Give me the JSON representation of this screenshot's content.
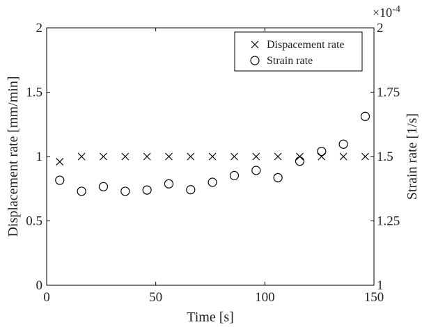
{
  "chart_data": {
    "type": "scatter",
    "title": "",
    "xlabel": "Time [s]",
    "ylabel_left": "Displacement rate [mm/min]",
    "ylabel_right": "Strain rate [1/s]",
    "xlim": [
      0,
      150
    ],
    "ylim_left": [
      0,
      2
    ],
    "ylim_right": [
      1,
      2
    ],
    "right_multiplier": "×10",
    "right_multiplier_exp": "-4",
    "x_ticks": [
      "0",
      "50",
      "100",
      "150"
    ],
    "y_left_ticks": [
      "0",
      "0.5",
      "1",
      "1.5",
      "2"
    ],
    "y_right_ticks": [
      "1",
      "1.25",
      "1.5",
      "1.75",
      "2"
    ],
    "grid": false,
    "legend_position": "top-right",
    "series": [
      {
        "name": "Dispacement rate",
        "marker": "x",
        "axis": "left",
        "x": [
          6,
          16,
          26,
          36,
          46,
          56,
          66,
          76,
          86,
          96,
          106,
          116,
          126,
          136,
          146
        ],
        "y": [
          0.96,
          1.0,
          1.0,
          1.0,
          1.0,
          1.0,
          1.0,
          1.0,
          1.0,
          1.0,
          1.0,
          1.0,
          1.0,
          1.0,
          1.0
        ]
      },
      {
        "name": "Strain rate",
        "marker": "circle",
        "axis": "right",
        "x": [
          6,
          16,
          26,
          36,
          46,
          56,
          66,
          76,
          86,
          96,
          106,
          116,
          126,
          136,
          146
        ],
        "y": [
          1.408,
          1.365,
          1.383,
          1.365,
          1.37,
          1.394,
          1.371,
          1.4,
          1.426,
          1.446,
          1.418,
          1.482,
          1.52,
          1.548,
          1.656
        ]
      }
    ]
  }
}
